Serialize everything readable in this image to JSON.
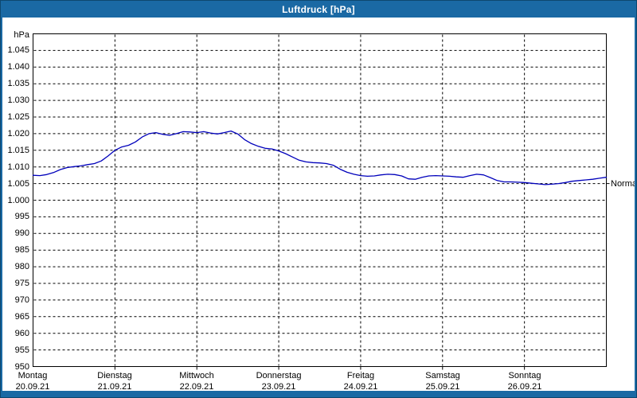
{
  "window": {
    "title": "Luftdruck [hPa]",
    "colors": {
      "titlebar": "#1a69a4",
      "window_border": "#0e476f",
      "curve": "#0000bb",
      "grid": "#000000",
      "background": "#ffffff",
      "title_text": "#ffffff",
      "axis_text": "#000000"
    }
  },
  "chart_data": {
    "type": "line",
    "title": "Luftdruck [hPa]",
    "ylabel": "hPa",
    "ylim": [
      950,
      1050
    ],
    "ytick_step": 5,
    "ytick_values": [
      1045,
      1040,
      1035,
      1030,
      1025,
      1020,
      1015,
      1010,
      1005,
      1000,
      995,
      990,
      985,
      980,
      975,
      970,
      965,
      960,
      955,
      950
    ],
    "ytick_labels": [
      "1.045",
      "1.040",
      "1.035",
      "1.030",
      "1.025",
      "1.020",
      "1.015",
      "1.010",
      "1.005",
      "1.000",
      "995",
      "990",
      "985",
      "980",
      "975",
      "970",
      "965",
      "960",
      "955",
      "950"
    ],
    "grid": "dashed",
    "legend_position": "none",
    "x_unit": "hours",
    "x_range_hours": [
      0,
      168
    ],
    "days": [
      {
        "name": "Montag",
        "date": "20.09.21"
      },
      {
        "name": "Dienstag",
        "date": "21.09.21"
      },
      {
        "name": "Mittwoch",
        "date": "22.09.21"
      },
      {
        "name": "Donnerstag",
        "date": "23.09.21"
      },
      {
        "name": "Freitag",
        "date": "24.09.21"
      },
      {
        "name": "Samstag",
        "date": "25.09.21"
      },
      {
        "name": "Sonntag",
        "date": "26.09.21"
      }
    ],
    "series": [
      {
        "name": "Luftdruck",
        "color": "#0000bb",
        "x_step_hours": 2,
        "values": [
          1007.5,
          1007.4,
          1007.7,
          1008.3,
          1009.2,
          1009.8,
          1010.1,
          1010.3,
          1010.7,
          1011.0,
          1011.8,
          1013.3,
          1015.0,
          1016.0,
          1016.5,
          1017.5,
          1019.0,
          1020.0,
          1020.3,
          1019.8,
          1019.5,
          1020.0,
          1020.6,
          1020.5,
          1020.3,
          1020.6,
          1020.2,
          1019.9,
          1020.3,
          1020.8,
          1019.9,
          1018.2,
          1017.0,
          1016.2,
          1015.6,
          1015.4,
          1014.8,
          1014.0,
          1013.0,
          1012.0,
          1011.5,
          1011.3,
          1011.2,
          1011.0,
          1010.5,
          1009.3,
          1008.4,
          1007.8,
          1007.4,
          1007.2,
          1007.3,
          1007.6,
          1007.8,
          1007.7,
          1007.3,
          1006.4,
          1006.3,
          1006.9,
          1007.3,
          1007.4,
          1007.3,
          1007.2,
          1007.0,
          1006.9,
          1007.4,
          1007.8,
          1007.6,
          1006.8,
          1005.9,
          1005.5,
          1005.5,
          1005.4,
          1005.3,
          1005.1,
          1004.9,
          1004.7,
          1004.8,
          1005.0,
          1005.3,
          1005.7,
          1005.9,
          1006.1,
          1006.3,
          1006.6,
          1006.9
        ]
      }
    ],
    "annotations": [
      {
        "label": "Normal",
        "value": 1005
      }
    ]
  }
}
